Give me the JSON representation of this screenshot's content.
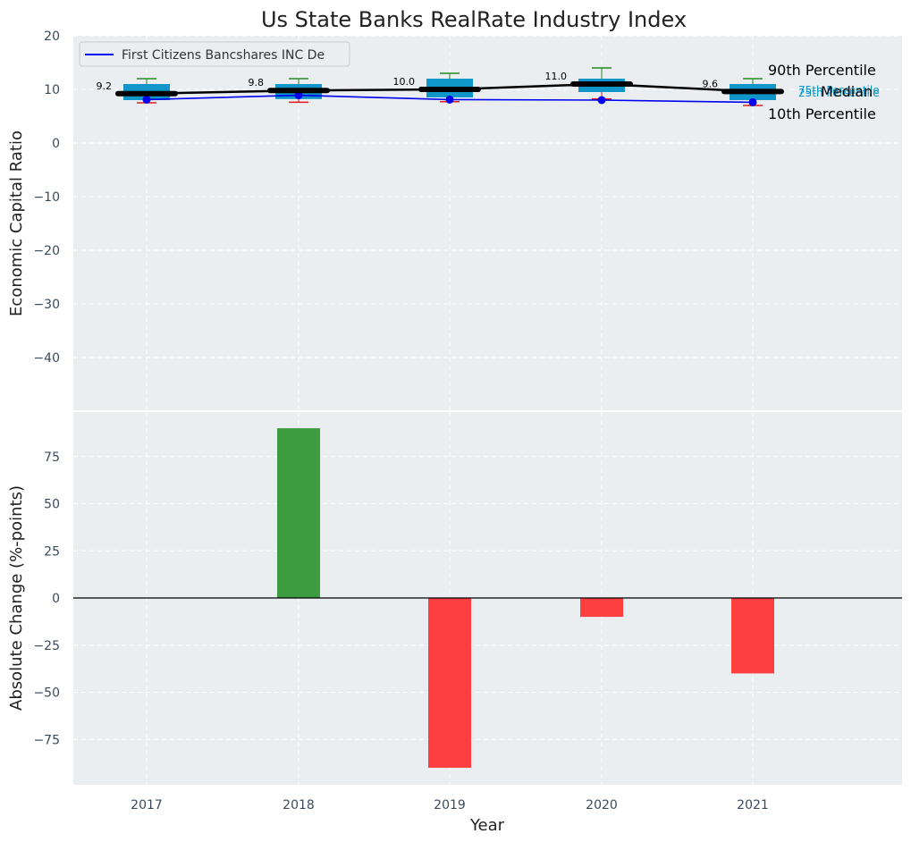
{
  "chart_data": [
    {
      "type": "box",
      "title": "Us State Banks RealRate Industry Index",
      "ylabel": "Economic Capital Ratio",
      "xlabel": "",
      "ylim": [
        -50,
        20
      ],
      "yticks": [
        20,
        10,
        0,
        -10,
        -20,
        -30,
        -40
      ],
      "ytick_labels": [
        "20",
        "10",
        "0",
        "−10",
        "−20",
        "−30",
        "−40"
      ],
      "grid": true,
      "legend": {
        "position": "top-left",
        "entries": [
          "First Citizens Bancshares INC De"
        ]
      },
      "categories": [
        "2017",
        "2018",
        "2019",
        "2020",
        "2021"
      ],
      "boxes": [
        {
          "year": "2017",
          "p10": 7.5,
          "p25": 8.0,
          "median": 9.2,
          "p75": 11.0,
          "p90": 12.0
        },
        {
          "year": "2018",
          "p10": 7.6,
          "p25": 8.2,
          "median": 9.8,
          "p75": 11.0,
          "p90": 12.0
        },
        {
          "year": "2019",
          "p10": 7.7,
          "p25": 8.5,
          "median": 10.0,
          "p75": 12.0,
          "p90": 13.0
        },
        {
          "year": "2020",
          "p10": 8.2,
          "p25": 9.5,
          "median": 11.0,
          "p75": 12.0,
          "p90": 14.0
        },
        {
          "year": "2021",
          "p10": 7.0,
          "p25": 8.0,
          "median": 9.6,
          "p75": 11.0,
          "p90": 12.0
        }
      ],
      "median_labels": [
        "9.2",
        "9.8",
        "10.0",
        "11.0",
        "9.6"
      ],
      "company_series": {
        "name": "First Citizens Bancshares INC De",
        "values": [
          8.1,
          8.9,
          8.1,
          8.0,
          7.6
        ]
      },
      "annotations": {
        "p90": "90th Percentile",
        "p75": "75th Percentile",
        "median": "Median",
        "p25": "25th Percentile",
        "p10": "10th Percentile"
      }
    },
    {
      "type": "bar",
      "xlabel": "Year",
      "ylabel": "Absolute Change (%-points)",
      "categories": [
        "2017",
        "2018",
        "2019",
        "2020",
        "2021"
      ],
      "values": [
        0,
        90,
        -90,
        -10,
        -40
      ],
      "ylim": [
        -99,
        99
      ],
      "yticks": [
        75,
        50,
        25,
        0,
        -25,
        -50,
        -75
      ],
      "ytick_labels": [
        "75",
        "50",
        "25",
        "0",
        "−25",
        "−50",
        "−75"
      ],
      "colors": {
        "positive": "#2e9431",
        "negative": "#ff3030"
      },
      "grid": true
    }
  ],
  "colors": {
    "panel_bg": "#eaeef0",
    "grid": "#ffffff",
    "box_fill": "#1096c8",
    "whisker_top": "#228b22",
    "whisker_bottom": "#e01b1b",
    "company_line": "#0000ee",
    "median_line": "#000000",
    "tick_text": "#3a4a5e",
    "title_text": "#222222",
    "annotation_text": "#1096c8"
  }
}
